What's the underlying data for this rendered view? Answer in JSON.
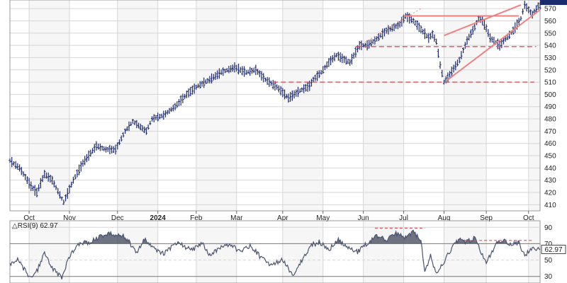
{
  "colors": {
    "price_bar": "#1c2a6e",
    "grid": "#d6d6d6",
    "grid_band": "#ececec",
    "annotation": "#f08080",
    "rsi_line": "#4a5470",
    "rsi_fill": "#3e4658",
    "badge_bg": "#1c2a6e",
    "badge_text": "#ffffff"
  },
  "chart_data": [
    {
      "type": "ohlc",
      "title": "",
      "x_tick_labels": [
        "Oct",
        "Nov",
        "Dec",
        "2024",
        "Feb",
        "Mar",
        "Apr",
        "May",
        "Jun",
        "Jul",
        "Aug",
        "Sep",
        "Oct"
      ],
      "x_tick_positions": [
        10,
        31,
        56,
        77,
        97,
        118,
        142,
        163,
        184,
        205,
        226,
        248,
        270
      ],
      "y_ticks": [
        410,
        420,
        430,
        440,
        450,
        460,
        470,
        480,
        490,
        500,
        510,
        520,
        530,
        540,
        550,
        560,
        570
      ],
      "ylim": [
        405,
        577
      ],
      "grid": true,
      "close_label": "",
      "series": [
        {
          "anchors_x": [
            0,
            5,
            11,
            14,
            18,
            22,
            28,
            33,
            38,
            45,
            50,
            55,
            60,
            64,
            71,
            74,
            80,
            86,
            92,
            98,
            104,
            110,
            117,
            123,
            128,
            133,
            139,
            145,
            151,
            156,
            158,
            162,
            166,
            170,
            177,
            182,
            186,
            190,
            196,
            203,
            206,
            210,
            214,
            218,
            220,
            222,
            224,
            226,
            228,
            234,
            238,
            242,
            244,
            246,
            248,
            250,
            255,
            262,
            266,
            268,
            272,
            275
          ],
          "anchors_y": [
            446,
            440,
            425,
            420,
            435,
            430,
            412,
            430,
            444,
            458,
            455,
            455,
            470,
            478,
            470,
            480,
            483,
            490,
            500,
            507,
            512,
            518,
            522,
            518,
            520,
            512,
            506,
            497,
            503,
            507,
            512,
            518,
            526,
            532,
            526,
            540,
            540,
            544,
            552,
            557,
            564,
            560,
            553,
            546,
            549,
            543,
            524,
            510,
            514,
            528,
            544,
            555,
            562,
            560,
            554,
            546,
            540,
            552,
            562,
            573,
            565,
            572
          ]
        }
      ],
      "annotations": {
        "horizontal_dashed": [
          {
            "y": 539,
            "x_start": 180,
            "x_end": 274
          },
          {
            "y": 510,
            "x_start": 137,
            "x_end": 273
          }
        ],
        "horizontal_solid": [
          {
            "y": 564,
            "x_start": 205,
            "x_end": 265
          }
        ],
        "trend_lines": [
          {
            "x1": 226,
            "y1": 548,
            "x2": 266,
            "y2": 573
          },
          {
            "x1": 228,
            "y1": 512,
            "x2": 276,
            "y2": 569
          },
          {
            "x1": 180,
            "y1": 538,
            "x2": 214,
            "y2": 570,
            "style": "dotted"
          }
        ]
      }
    },
    {
      "type": "line",
      "indicator_label": "△RSI(9) 62.97",
      "y_ticks": [
        30,
        50,
        70,
        90
      ],
      "ylim": [
        22,
        98
      ],
      "overbought": 70,
      "oversold": 30,
      "midline": 50,
      "current_value": "62.97",
      "series": [
        {
          "anchors_x": [
            0,
            4,
            10,
            14,
            18,
            22,
            27,
            31,
            36,
            42,
            48,
            53,
            60,
            66,
            70,
            74,
            80,
            84,
            88,
            95,
            100,
            104,
            110,
            115,
            120,
            125,
            130,
            136,
            142,
            148,
            153,
            157,
            161,
            166,
            171,
            176,
            181,
            186,
            191,
            196,
            201,
            206,
            210,
            214,
            216,
            219,
            222,
            226,
            230,
            234,
            238,
            242,
            245,
            248,
            251,
            254,
            257,
            261,
            265,
            268,
            272,
            276
          ],
          "anchors_y": [
            45,
            50,
            30,
            36,
            58,
            40,
            28,
            55,
            70,
            72,
            80,
            82,
            78,
            60,
            75,
            65,
            58,
            66,
            70,
            62,
            70,
            56,
            66,
            68,
            60,
            68,
            55,
            44,
            50,
            30,
            55,
            68,
            72,
            62,
            75,
            64,
            60,
            70,
            80,
            74,
            82,
            78,
            85,
            72,
            35,
            55,
            32,
            48,
            65,
            75,
            72,
            78,
            60,
            48,
            60,
            72,
            75,
            68,
            72,
            55,
            66,
            63
          ]
        }
      ],
      "annotations": {
        "horizontal_dashed": [
          {
            "y": 89,
            "x_start": 190,
            "x_end": 216
          },
          {
            "y": 74,
            "x_start": 234,
            "x_end": 272
          }
        ]
      }
    }
  ]
}
